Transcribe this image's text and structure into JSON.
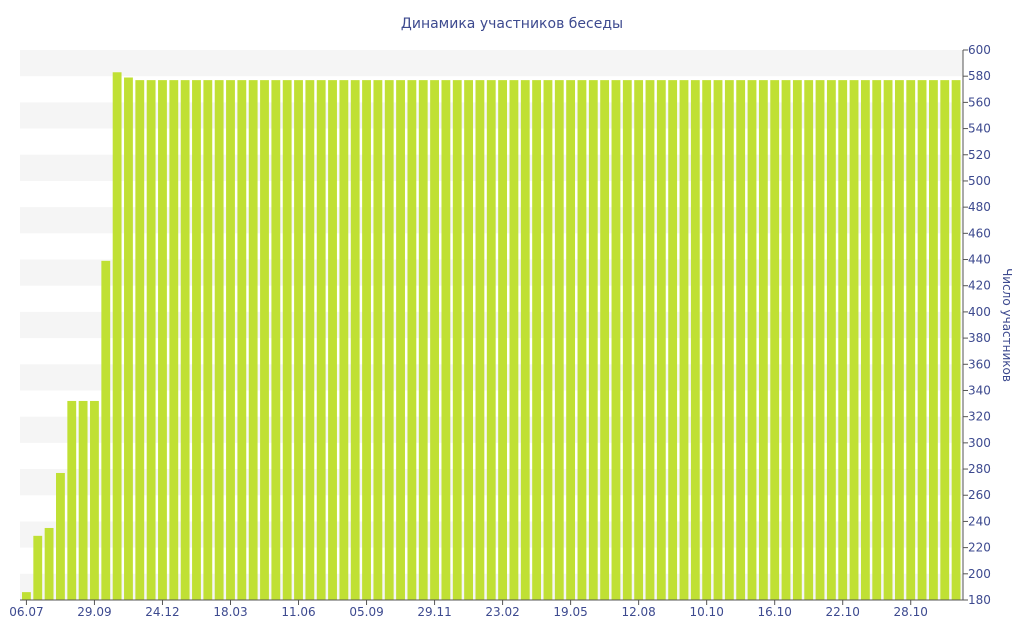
{
  "chart_data": {
    "type": "bar",
    "title": "Динамика участников беседы",
    "ylabel": "Число участников",
    "xlabel": "",
    "ylim": [
      180,
      600
    ],
    "yticks": [
      180,
      200,
      220,
      240,
      260,
      280,
      300,
      320,
      340,
      360,
      380,
      400,
      420,
      440,
      460,
      480,
      500,
      520,
      540,
      560,
      580,
      600
    ],
    "x_tick_labels": [
      {
        "label": "06.07",
        "bar": 0
      },
      {
        "label": "29.09",
        "bar": 6
      },
      {
        "label": "24.12",
        "bar": 12
      },
      {
        "label": "18.03",
        "bar": 18
      },
      {
        "label": "11.06",
        "bar": 24
      },
      {
        "label": "05.09",
        "bar": 30
      },
      {
        "label": "29.11",
        "bar": 36
      },
      {
        "label": "23.02",
        "bar": 42
      },
      {
        "label": "19.05",
        "bar": 48
      },
      {
        "label": "12.08",
        "bar": 54
      },
      {
        "label": "10.10",
        "bar": 60
      },
      {
        "label": "16.10",
        "bar": 66
      },
      {
        "label": "22.10",
        "bar": 72
      },
      {
        "label": "28.10",
        "bar": 78
      }
    ],
    "values": [
      186,
      229,
      235,
      277,
      332,
      332,
      332,
      439,
      583,
      579,
      577,
      577,
      577,
      577,
      577,
      577,
      577,
      577,
      577,
      577,
      577,
      577,
      577,
      577,
      577,
      577,
      577,
      577,
      577,
      577,
      577,
      577,
      577,
      577,
      577,
      577,
      577,
      577,
      577,
      577,
      577,
      577,
      577,
      577,
      577,
      577,
      577,
      577,
      577,
      577,
      577,
      577,
      577,
      577,
      577,
      577,
      577,
      577,
      577,
      577,
      577,
      577,
      577,
      577,
      577,
      577,
      577,
      577,
      577,
      577,
      577,
      577,
      577,
      577,
      577,
      577,
      577,
      577,
      577,
      577,
      577,
      577,
      577
    ],
    "grid": "alternating horizontal bands",
    "y_axis_position": "right",
    "colors": {
      "bar": "#c0e034",
      "band": "#f5f5f5",
      "text": "#3d4a8f",
      "axis": "#555555"
    }
  }
}
